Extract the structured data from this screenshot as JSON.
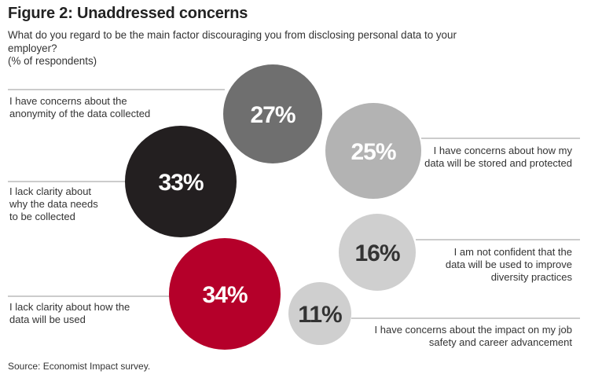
{
  "header": {
    "title": "Figure 2: Unaddressed concerns",
    "subtitle": "What do you regard to be the main factor discouraging you from disclosing personal data to your employer?",
    "unit_note": "(% of respondents)"
  },
  "footer": {
    "source": "Source: Economist Impact survey."
  },
  "colors": {
    "dark_gray": "#6f6f6f",
    "black": "#231f20",
    "light_gray": "#b3b3b3",
    "lighter_gray": "#cfcfcf",
    "red": "#b5002a",
    "leader_line": "#9a9a9a"
  },
  "chart_data": {
    "type": "bubble",
    "title": "Figure 2: Unaddressed concerns",
    "unit": "% of respondents",
    "items": [
      {
        "value": 27,
        "display": "27%",
        "label_lines": [
          "I have concerns about the",
          "anonymity of the data collected"
        ],
        "label_side": "left",
        "color": "#6f6f6f",
        "text_color": "#ffffff"
      },
      {
        "value": 33,
        "display": "33%",
        "label_lines": [
          "I lack clarity about",
          "why the data needs",
          "to be collected"
        ],
        "label_side": "left",
        "color": "#231f20",
        "text_color": "#ffffff"
      },
      {
        "value": 25,
        "display": "25%",
        "label_lines": [
          "I have concerns about how my",
          "data will be stored and protected"
        ],
        "label_side": "right",
        "color": "#b3b3b3",
        "text_color": "#ffffff"
      },
      {
        "value": 16,
        "display": "16%",
        "label_lines": [
          "I am not confident that the",
          "data will be used to improve",
          "diversity practices"
        ],
        "label_side": "right",
        "color": "#cfcfcf",
        "text_color": "#333333"
      },
      {
        "value": 34,
        "display": "34%",
        "label_lines": [
          "I lack clarity about how the",
          "data will be used"
        ],
        "label_side": "left",
        "color": "#b5002a",
        "text_color": "#ffffff"
      },
      {
        "value": 11,
        "display": "11%",
        "label_lines": [
          "I have concerns about the impact on my job",
          "safety and career advancement"
        ],
        "label_side": "right",
        "color": "#cfcfcf",
        "text_color": "#333333"
      }
    ]
  }
}
